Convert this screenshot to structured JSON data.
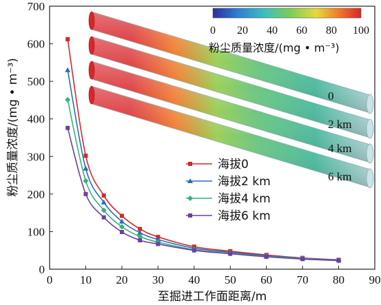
{
  "chart_data": {
    "type": "line",
    "xlabel": "至掘进工作面距离/m",
    "ylabel": "粉尘质量浓度/(mg • m⁻³)",
    "xlim": [
      0,
      90
    ],
    "ylim": [
      0,
      700
    ],
    "xticks": [
      "0",
      "10",
      "20",
      "30",
      "40",
      "50",
      "60",
      "70",
      "80",
      "90"
    ],
    "yticks": [
      "0",
      "100",
      "200",
      "300",
      "400",
      "500",
      "600",
      "700"
    ],
    "legend_position": "center",
    "x": [
      5,
      10,
      15,
      20,
      25,
      30,
      40,
      50,
      60,
      70,
      80
    ],
    "series": [
      {
        "name": "海拔0",
        "color": "#d62728",
        "marker": "square",
        "values": [
          612,
          302,
          196,
          142,
          107,
          86,
          60,
          48,
          38,
          30,
          25
        ]
      },
      {
        "name": "海拔2 km",
        "color": "#2b6cb8",
        "marker": "triangle",
        "values": [
          530,
          268,
          178,
          127,
          97,
          79,
          56,
          45,
          36,
          29,
          24
        ]
      },
      {
        "name": "海拔4 km",
        "color": "#33b27a",
        "marker": "diamond",
        "values": [
          451,
          235,
          157,
          113,
          87,
          72,
          52,
          42,
          34,
          28,
          23
        ]
      },
      {
        "name": "海拔6 km",
        "color": "#6b3fa0",
        "marker": "square",
        "values": [
          376,
          200,
          138,
          99,
          77,
          67,
          50,
          41,
          33,
          27,
          23
        ]
      }
    ],
    "inset": {
      "tunnel_labels": [
        "0",
        "2 km",
        "4 km",
        "6 km"
      ],
      "colorbar": {
        "ticks": [
          "0",
          "20",
          "40",
          "60",
          "80",
          "100"
        ],
        "title": "粉尘质量浓度/(mg • m⁻³)",
        "colors": [
          "#2a2fa0",
          "#2f7fd0",
          "#3ac0c0",
          "#7dcd55",
          "#e6d93a",
          "#f07a2a",
          "#d8262a"
        ]
      }
    }
  }
}
